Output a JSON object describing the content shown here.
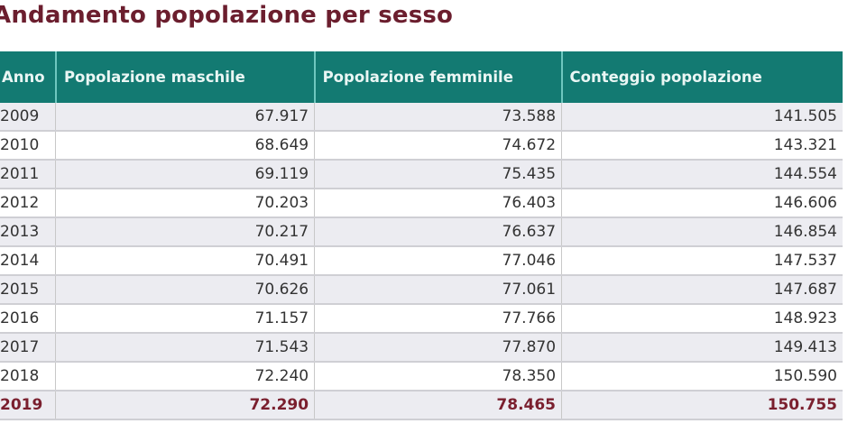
{
  "title": "Andamento popolazione per sesso",
  "table": {
    "headers": [
      "Anno",
      "Popolazione maschile",
      "Popolazione femminile",
      "Conteggio popolazione"
    ],
    "rows": [
      {
        "anno": "2009",
        "maschile": "67.917",
        "femminile": "73.588",
        "totale": "141.505"
      },
      {
        "anno": "2010",
        "maschile": "68.649",
        "femminile": "74.672",
        "totale": "143.321"
      },
      {
        "anno": "2011",
        "maschile": "69.119",
        "femminile": "75.435",
        "totale": "144.554"
      },
      {
        "anno": "2012",
        "maschile": "70.203",
        "femminile": "76.403",
        "totale": "146.606"
      },
      {
        "anno": "2013",
        "maschile": "70.217",
        "femminile": "76.637",
        "totale": "146.854"
      },
      {
        "anno": "2014",
        "maschile": "70.491",
        "femminile": "77.046",
        "totale": "147.537"
      },
      {
        "anno": "2015",
        "maschile": "70.626",
        "femminile": "77.061",
        "totale": "147.687"
      },
      {
        "anno": "2016",
        "maschile": "71.157",
        "femminile": "77.766",
        "totale": "148.923"
      },
      {
        "anno": "2017",
        "maschile": "71.543",
        "femminile": "77.870",
        "totale": "149.413"
      },
      {
        "anno": "2018",
        "maschile": "72.240",
        "femminile": "78.350",
        "totale": "150.590"
      },
      {
        "anno": "2019",
        "maschile": "72.290",
        "femminile": "78.465",
        "totale": "150.755"
      }
    ]
  },
  "colors": {
    "title": "#6b1e2e",
    "header_bg": "#137a72",
    "header_text": "#eaf6f4",
    "highlight_row_text": "#7a1f2e",
    "stripe": "#ececf1"
  }
}
